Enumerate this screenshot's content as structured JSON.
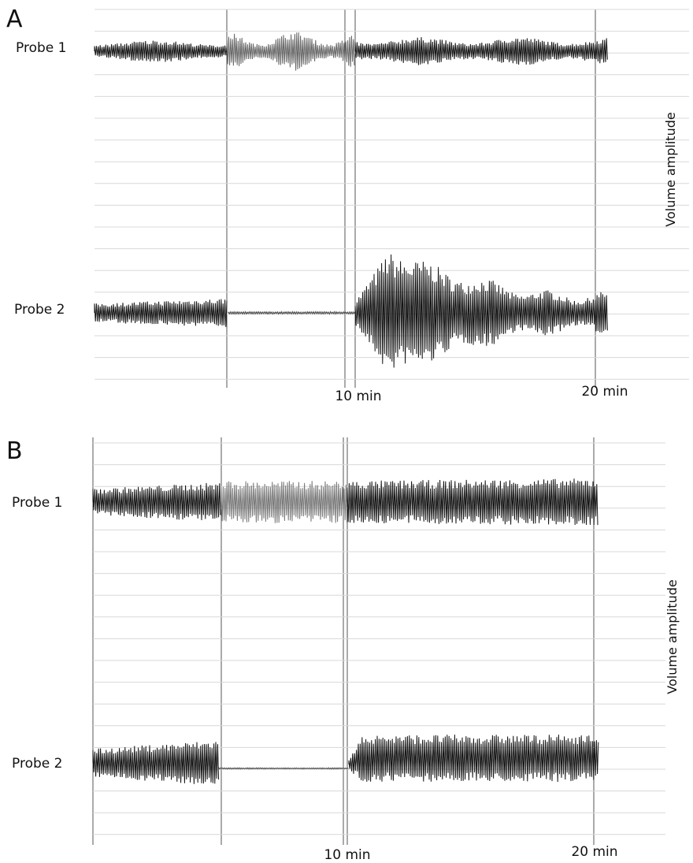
{
  "panels": [
    {
      "label": "A",
      "probes": [
        "Probe 1",
        "Probe 2"
      ],
      "times": [
        "10 min",
        "20 min"
      ],
      "y_axis_label": "Volume amplitude"
    },
    {
      "label": "B",
      "probes": [
        "Probe 1",
        "Probe 2"
      ],
      "times": [
        "10 min",
        "20 min"
      ],
      "y_axis_label": "Volume amplitude"
    }
  ]
}
